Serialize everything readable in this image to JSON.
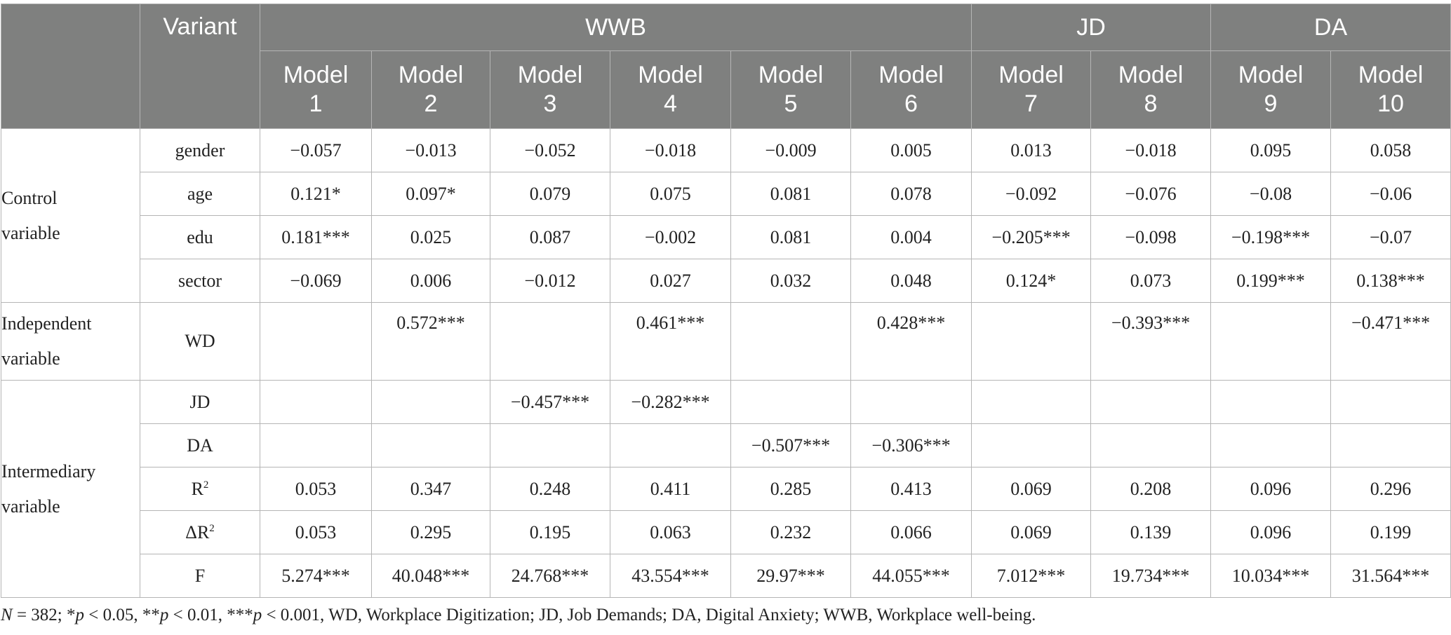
{
  "table": {
    "header": {
      "variant_label": "Variant",
      "groups": [
        {
          "label": "WWB"
        },
        {
          "label": "JD"
        },
        {
          "label": "DA"
        }
      ],
      "models": [
        {
          "l1": "Model",
          "l2": "1"
        },
        {
          "l1": "Model",
          "l2": "2"
        },
        {
          "l1": "Model",
          "l2": "3"
        },
        {
          "l1": "Model",
          "l2": "4"
        },
        {
          "l1": "Model",
          "l2": "5"
        },
        {
          "l1": "Model",
          "l2": "6"
        },
        {
          "l1": "Model",
          "l2": "7"
        },
        {
          "l1": "Model",
          "l2": "8"
        },
        {
          "l1": "Model",
          "l2": "9"
        },
        {
          "l1": "Model",
          "l2": "10"
        }
      ]
    },
    "categories": {
      "control": {
        "l1": "Control",
        "l2": "variable"
      },
      "independent": {
        "l1": "Independent",
        "l2": "variable"
      },
      "intermediary": {
        "l1": "Intermediary",
        "l2": "variable"
      }
    },
    "rows": {
      "gender": {
        "label": "gender",
        "values": [
          "−0.057",
          "−0.013",
          "−0.052",
          "−0.018",
          "−0.009",
          "0.005",
          "0.013",
          "−0.018",
          "0.095",
          "0.058"
        ]
      },
      "age": {
        "label": "age",
        "values": [
          "0.121*",
          "0.097*",
          "0.079",
          "0.075",
          "0.081",
          "0.078",
          "−0.092",
          "−0.076",
          "−0.08",
          "−0.06"
        ]
      },
      "edu": {
        "label": "edu",
        "values": [
          "0.181***",
          "0.025",
          "0.087",
          "−0.002",
          "0.081",
          "0.004",
          "−0.205***",
          "−0.098",
          "−0.198***",
          "−0.07"
        ]
      },
      "sector": {
        "label": "sector",
        "values": [
          "−0.069",
          "0.006",
          "−0.012",
          "0.027",
          "0.032",
          "0.048",
          "0.124*",
          "0.073",
          "0.199***",
          "0.138***"
        ]
      },
      "wd": {
        "label": "WD",
        "values": [
          "",
          "0.572***",
          "",
          "0.461***",
          "",
          "0.428***",
          "",
          "−0.393***",
          "",
          "−0.471***"
        ]
      },
      "jd": {
        "label": "JD",
        "values": [
          "",
          "",
          "−0.457***",
          "−0.282***",
          "",
          "",
          "",
          "",
          "",
          ""
        ]
      },
      "da": {
        "label": "DA",
        "values": [
          "",
          "",
          "",
          "",
          "−0.507***",
          "−0.306***",
          "",
          "",
          "",
          ""
        ]
      },
      "r2": {
        "label": "R",
        "sup": "2",
        "values": [
          "0.053",
          "0.347",
          "0.248",
          "0.411",
          "0.285",
          "0.413",
          "0.069",
          "0.208",
          "0.096",
          "0.296"
        ]
      },
      "dr2": {
        "label": "ΔR",
        "sup": "2",
        "values": [
          "0.053",
          "0.295",
          "0.195",
          "0.063",
          "0.232",
          "0.066",
          "0.069",
          "0.139",
          "0.096",
          "0.199"
        ]
      },
      "f": {
        "label": "F",
        "values": [
          "5.274***",
          "40.048***",
          "24.768***",
          "43.554***",
          "29.97***",
          "44.055***",
          "7.012***",
          "19.734***",
          "10.034***",
          "31.564***"
        ]
      }
    }
  },
  "note": {
    "n_italic": "N",
    "n_text": " = 382; *",
    "p1_italic": "p",
    "p1_text": " < 0.05, **",
    "p2_italic": "p",
    "p2_text": " < 0.01, ***",
    "p3_italic": "p",
    "p3_text": " < 0.001, WD, Workplace Digitization; JD, Job Demands; DA, Digital Anxiety; WWB, Workplace well-being."
  }
}
